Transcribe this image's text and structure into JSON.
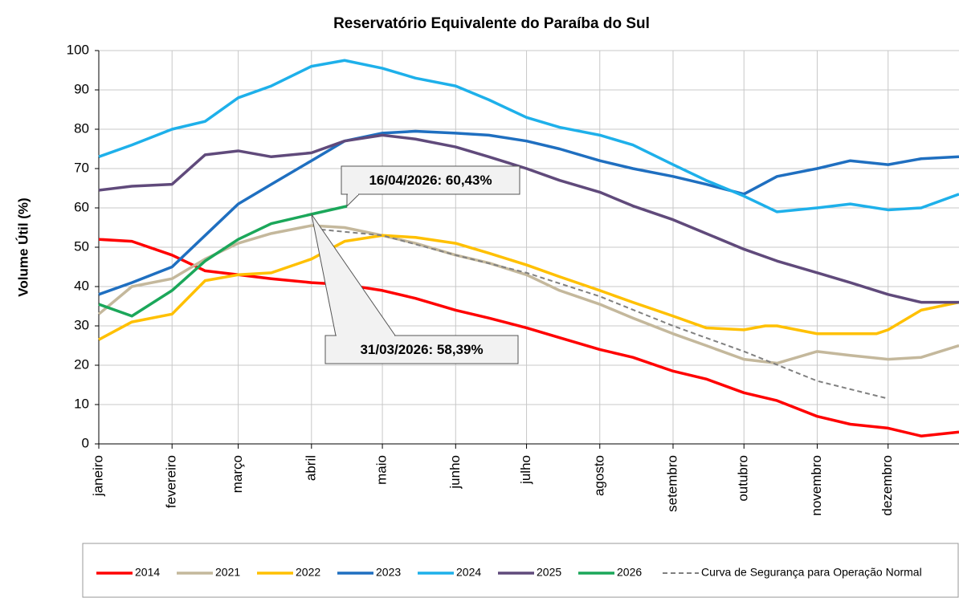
{
  "chart_data": {
    "type": "line",
    "title": "Reservatório Equivalente do Paraíba do Sul",
    "y_label": "Volume Útil (%)",
    "xlim": [
      1,
      365
    ],
    "xticks": [
      {
        "value": 1,
        "label": "janeiro"
      },
      {
        "value": 32,
        "label": "fevereiro"
      },
      {
        "value": 60,
        "label": "março"
      },
      {
        "value": 91,
        "label": "abril"
      },
      {
        "value": 121,
        "label": "maio"
      },
      {
        "value": 152,
        "label": "junho"
      },
      {
        "value": 182,
        "label": "julho"
      },
      {
        "value": 213,
        "label": "agosto"
      },
      {
        "value": 244,
        "label": "setembro"
      },
      {
        "value": 274,
        "label": "outubro"
      },
      {
        "value": 305,
        "label": "novembro"
      },
      {
        "value": 335,
        "label": "dezembro"
      }
    ],
    "ylim": [
      0,
      100
    ],
    "yticks": [
      0,
      10,
      20,
      30,
      40,
      50,
      60,
      70,
      80,
      90,
      100
    ],
    "grid": true,
    "legend": "bottom",
    "series": [
      {
        "name": "2014",
        "color": "#ff0000",
        "x": [
          1,
          15,
          32,
          46,
          60,
          74,
          91,
          105,
          121,
          135,
          152,
          166,
          182,
          196,
          213,
          227,
          244,
          258,
          274,
          288,
          305,
          319,
          335,
          349,
          365
        ],
        "values": [
          52,
          51.5,
          48,
          44,
          43,
          42,
          41,
          40.5,
          39,
          37,
          34,
          32,
          29.5,
          27,
          24,
          22,
          18.5,
          16.5,
          13,
          11,
          7,
          5,
          4,
          2,
          3
        ]
      },
      {
        "name": "2021",
        "color": "#c4b89c",
        "x": [
          1,
          15,
          32,
          46,
          60,
          74,
          91,
          105,
          121,
          135,
          152,
          166,
          182,
          196,
          213,
          227,
          244,
          258,
          274,
          288,
          305,
          319,
          335,
          349,
          365
        ],
        "values": [
          33,
          40,
          42,
          47,
          51,
          53.5,
          55.5,
          55,
          53,
          51,
          48,
          46,
          43,
          39,
          35.5,
          32,
          28,
          25,
          21.5,
          20.5,
          23.5,
          22.5,
          21.5,
          22,
          25
        ]
      },
      {
        "name": "2022",
        "color": "#ffc000",
        "x": [
          1,
          15,
          32,
          46,
          60,
          74,
          91,
          105,
          121,
          135,
          152,
          166,
          182,
          196,
          213,
          227,
          244,
          258,
          274,
          283,
          288,
          305,
          319,
          330,
          335,
          349,
          365
        ],
        "values": [
          26.5,
          31,
          33,
          41.5,
          43,
          43.5,
          47,
          51.5,
          53,
          52.5,
          51,
          48.5,
          45.5,
          42.5,
          39,
          36,
          32.5,
          29.5,
          29,
          30,
          30,
          28,
          28,
          28,
          29,
          34,
          36
        ]
      },
      {
        "name": "2023",
        "color": "#1f6fc0",
        "x": [
          1,
          15,
          32,
          46,
          60,
          74,
          91,
          105,
          121,
          135,
          152,
          166,
          182,
          196,
          213,
          227,
          244,
          258,
          274,
          288,
          305,
          319,
          335,
          349,
          365
        ],
        "values": [
          38,
          41,
          45,
          53,
          61,
          66,
          72,
          77,
          79,
          79.5,
          79,
          78.5,
          77,
          75,
          72,
          70,
          68,
          66,
          63.5,
          68,
          70,
          72,
          71,
          72.5,
          73
        ]
      },
      {
        "name": "2024",
        "color": "#1eb0ea",
        "x": [
          1,
          15,
          32,
          46,
          60,
          74,
          91,
          105,
          121,
          135,
          152,
          166,
          182,
          196,
          213,
          227,
          244,
          258,
          274,
          288,
          305,
          319,
          335,
          349,
          365
        ],
        "values": [
          73,
          76,
          80,
          82,
          88,
          91,
          96,
          97.5,
          95.5,
          93,
          91,
          87.5,
          83,
          80.5,
          78.5,
          76,
          71,
          67,
          63,
          59,
          60,
          61,
          59.5,
          60,
          63.5
        ]
      },
      {
        "name": "2025",
        "color": "#604a7b",
        "x": [
          1,
          15,
          32,
          46,
          60,
          74,
          91,
          105,
          121,
          135,
          152,
          166,
          182,
          196,
          213,
          227,
          244,
          258,
          274,
          288,
          305,
          319,
          335,
          349,
          365
        ],
        "values": [
          64.5,
          65.5,
          66,
          73.5,
          74.5,
          73,
          74,
          77,
          78.5,
          77.5,
          75.5,
          73,
          70,
          67,
          64,
          60.5,
          57,
          53.5,
          49.5,
          46.5,
          43.5,
          41,
          38,
          36,
          36
        ]
      },
      {
        "name": "2026",
        "color": "#1ba75a",
        "x": [
          1,
          15,
          32,
          46,
          60,
          74,
          91,
          106
        ],
        "values": [
          35.5,
          32.5,
          39,
          46.5,
          52,
          56,
          58.39,
          60.43
        ]
      },
      {
        "name": "Curva de Segurança para Operação Normal",
        "color": "#808080",
        "dashed": true,
        "x": [
          95,
          121,
          152,
          182,
          213,
          244,
          274,
          305,
          335
        ],
        "values": [
          54.5,
          53,
          48,
          43.5,
          37.5,
          30,
          23.5,
          16,
          11.5
        ]
      }
    ],
    "annotations": [
      {
        "label": "16/04/2026: 60,43%",
        "x": 106,
        "y": 60.43
      },
      {
        "label": "31/03/2026: 58,39%",
        "x": 91,
        "y": 58.39
      }
    ]
  }
}
